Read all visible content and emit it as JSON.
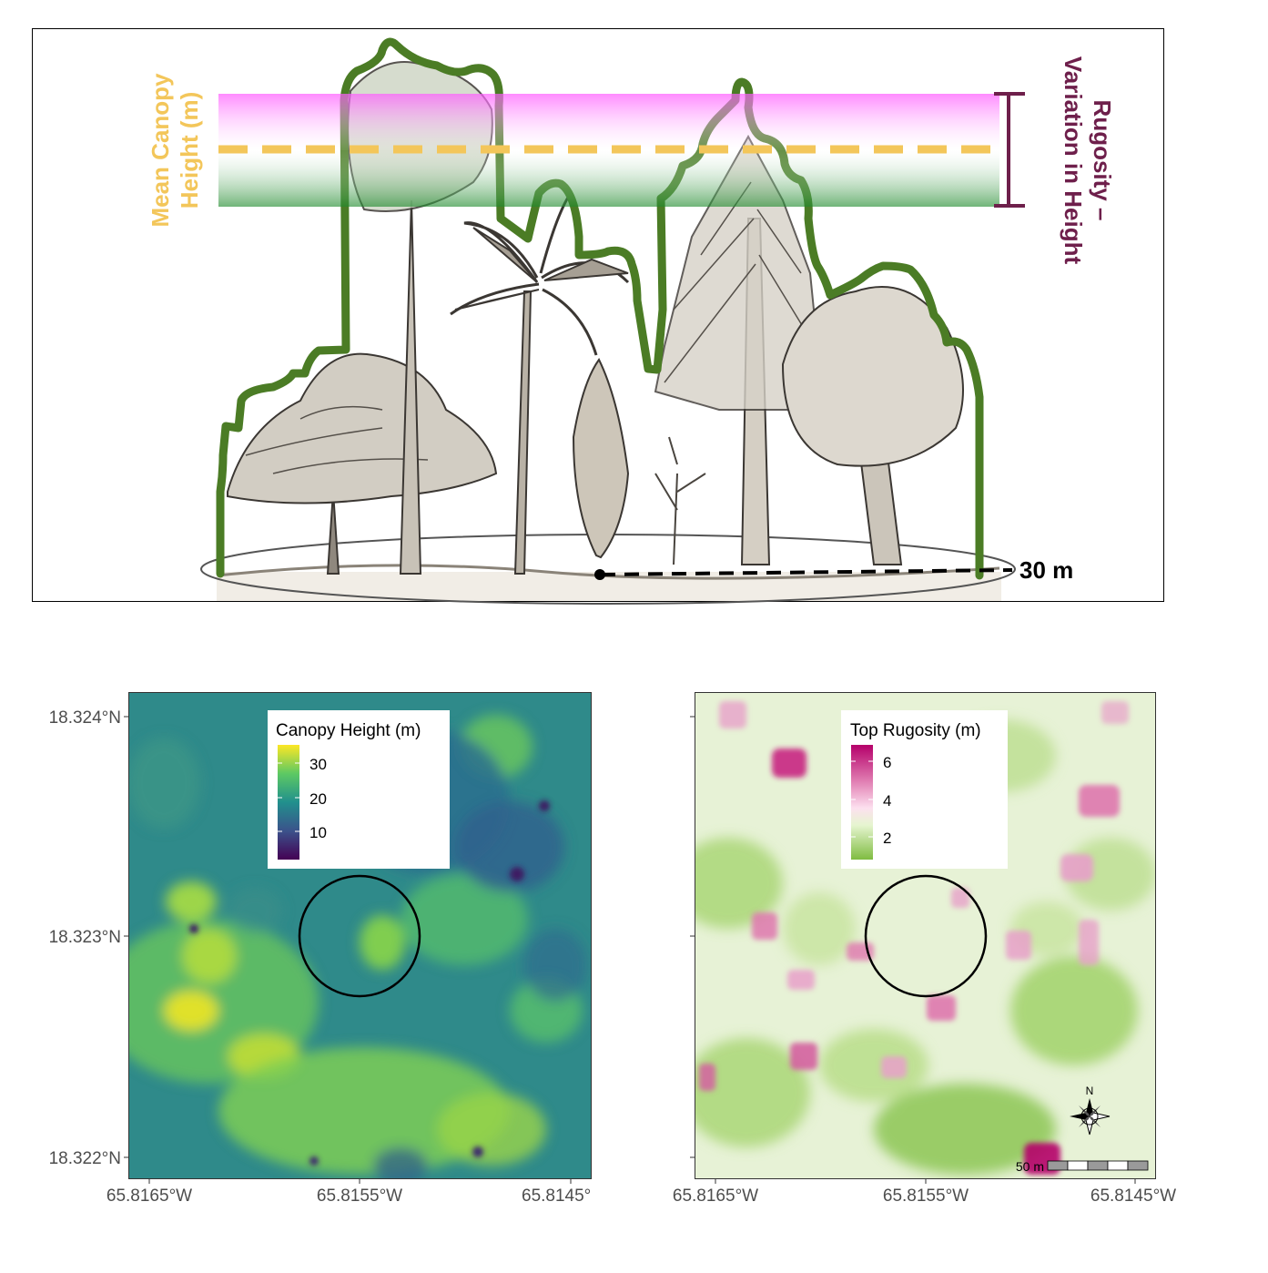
{
  "diagram": {
    "mean_label": [
      "Mean Canopy",
      "Height (m)"
    ],
    "rugosity_label": [
      "Rugosity –",
      "Variation in Height"
    ],
    "distance_label": "30 m",
    "colors": {
      "outline": "#4b7c25",
      "mean_line": "#f3c65a",
      "rugosity": "#6e1f4b",
      "magenta": "#ff66ff",
      "green": "#2e8b30"
    }
  },
  "maps": {
    "canopy": {
      "legend_title": "Canopy Height (m)",
      "legend_labels": [
        "30",
        "20",
        "10"
      ],
      "y_ticks": [
        "18.324°N",
        "18.323°N",
        "18.322°N"
      ],
      "x_ticks": [
        "65.8165°W",
        "65.8155°W",
        "65.8145°"
      ],
      "colormap": "viridis"
    },
    "rugosity": {
      "legend_title": "Top Rugosity (m)",
      "legend_labels": [
        "6",
        "4",
        "2"
      ],
      "x_ticks": [
        "65.8165°W",
        "65.8155°W",
        "65.8145°W"
      ],
      "colormap": "PiYG",
      "north_label": "N",
      "scale_label": "50 m"
    }
  }
}
